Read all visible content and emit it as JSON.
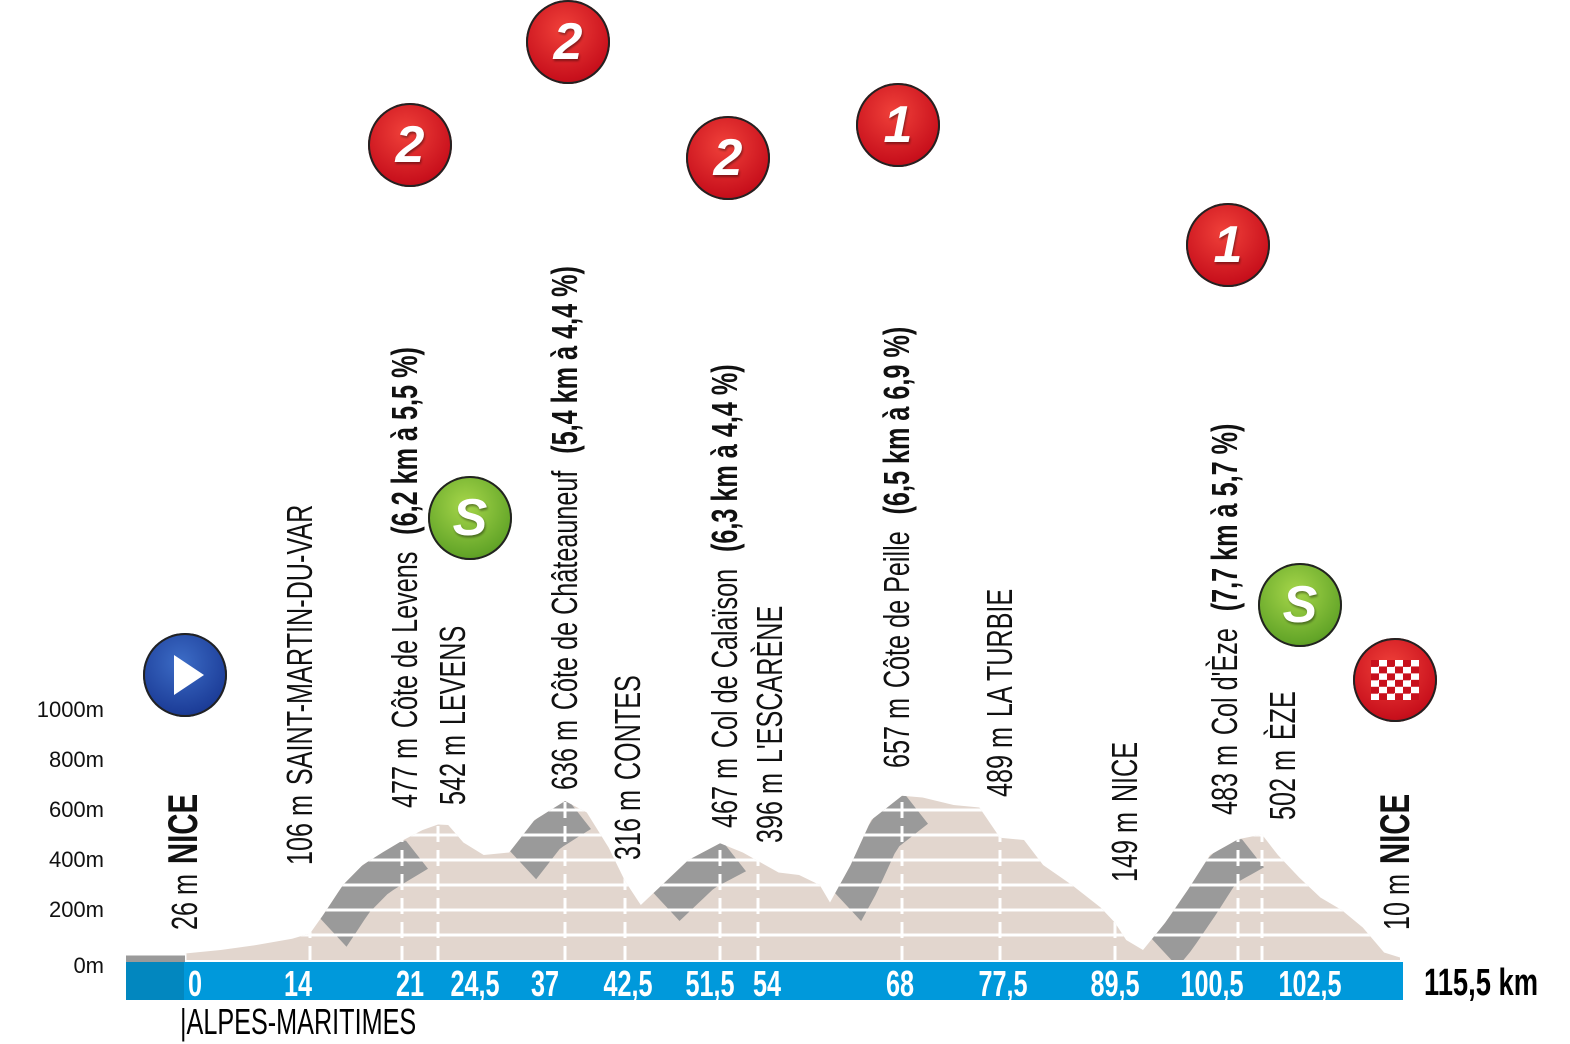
{
  "chart_data": {
    "type": "area",
    "title": "",
    "xlabel": "",
    "ylabel": "",
    "yticks": [
      "0m",
      "200m",
      "400m",
      "600m",
      "800m",
      "1000m"
    ],
    "ytick_values": [
      0,
      200,
      400,
      600,
      800,
      1000
    ],
    "ylim": [
      0,
      1000
    ],
    "xlim": [
      0,
      115.5
    ],
    "total_distance_label": "115,5 km",
    "department_label": "|ALPES-MARITIMES",
    "colors": {
      "terrain": "#e2d6ce",
      "climb": "#9a9a9a",
      "bar": "#0099db",
      "bar_dark": "#0287bf",
      "kom": "#c8101c",
      "sprint": "#63a528",
      "start": "#1d3e99"
    },
    "profile": [
      [
        0,
        26
      ],
      [
        4,
        40
      ],
      [
        8,
        60
      ],
      [
        12,
        85
      ],
      [
        14,
        106
      ],
      [
        15,
        180
      ],
      [
        16.5,
        300
      ],
      [
        18,
        380
      ],
      [
        19.5,
        430
      ],
      [
        21,
        477
      ],
      [
        23,
        520
      ],
      [
        24.5,
        542
      ],
      [
        25.5,
        540
      ],
      [
        27,
        470
      ],
      [
        29,
        420
      ],
      [
        31.5,
        430
      ],
      [
        34,
        560
      ],
      [
        37,
        636
      ],
      [
        39,
        590
      ],
      [
        41,
        450
      ],
      [
        42.5,
        316
      ],
      [
        44,
        220
      ],
      [
        46,
        300
      ],
      [
        48.5,
        400
      ],
      [
        51.5,
        467
      ],
      [
        53,
        430
      ],
      [
        54,
        396
      ],
      [
        56,
        350
      ],
      [
        58,
        340
      ],
      [
        60,
        300
      ],
      [
        61,
        230
      ],
      [
        63,
        380
      ],
      [
        65,
        560
      ],
      [
        68,
        657
      ],
      [
        70,
        650
      ],
      [
        73,
        620
      ],
      [
        75.5,
        610
      ],
      [
        77.5,
        489
      ],
      [
        80,
        480
      ],
      [
        82,
        380
      ],
      [
        85,
        300
      ],
      [
        88,
        210
      ],
      [
        89.5,
        149
      ],
      [
        90.5,
        80
      ],
      [
        92,
        40
      ],
      [
        94,
        150
      ],
      [
        96,
        280
      ],
      [
        98,
        420
      ],
      [
        100.5,
        483
      ],
      [
        102.5,
        502
      ],
      [
        104,
        420
      ],
      [
        106,
        330
      ],
      [
        108,
        250
      ],
      [
        110,
        200
      ],
      [
        112,
        130
      ],
      [
        114,
        30
      ],
      [
        115.5,
        10
      ]
    ],
    "climbs": [
      [
        14.8,
        21
      ],
      [
        31.6,
        37
      ],
      [
        45.2,
        51.5
      ],
      [
        61.5,
        68
      ],
      [
        92.8,
        100.5
      ]
    ],
    "km_ticks": [
      {
        "km": 0,
        "label": "0"
      },
      {
        "km": 14,
        "label": "14"
      },
      {
        "km": 21,
        "label": "21"
      },
      {
        "km": 24.5,
        "label": "24,5"
      },
      {
        "km": 37,
        "label": "37"
      },
      {
        "km": 42.5,
        "label": "42,5"
      },
      {
        "km": 51.5,
        "label": "51,5"
      },
      {
        "km": 54,
        "label": "54"
      },
      {
        "km": 68,
        "label": "68"
      },
      {
        "km": 77.5,
        "label": "77,5"
      },
      {
        "km": 89.5,
        "label": "89,5"
      },
      {
        "km": 100.5,
        "label": "100,5"
      },
      {
        "km": 102.5,
        "label": "102,5"
      }
    ],
    "points": [
      {
        "km": 0,
        "alt": "26 m",
        "name": "NICE",
        "bold": true,
        "marker": "start"
      },
      {
        "km": 14,
        "alt": "106 m",
        "name": "SAINT-MARTIN-DU-VAR"
      },
      {
        "km": 21,
        "alt": "477 m",
        "name": "Côte de Levens",
        "climb": "(6,2 km à 5,5 %)",
        "marker": "kom",
        "category": "2"
      },
      {
        "km": 24.5,
        "alt": "542 m",
        "name": "LEVENS",
        "marker": "sprint",
        "category": "S"
      },
      {
        "km": 37,
        "alt": "636 m",
        "name": "Côte de Châteauneuf",
        "climb": "(5,4 km à 4,4 %)",
        "marker": "kom",
        "category": "2"
      },
      {
        "km": 42.5,
        "alt": "316 m",
        "name": "CONTES"
      },
      {
        "km": 51.5,
        "alt": "467 m",
        "name": "Col de Calaïson",
        "climb": "(6,3 km à 4,4 %)",
        "marker": "kom",
        "category": "2"
      },
      {
        "km": 54,
        "alt": "396 m",
        "name": "L'ESCARÈNE"
      },
      {
        "km": 68,
        "alt": "657 m",
        "name": "Côte de Peille",
        "climb": "(6,5 km à 6,9 %)",
        "marker": "kom",
        "category": "1"
      },
      {
        "km": 77.5,
        "alt": "489 m",
        "name": "LA TURBIE"
      },
      {
        "km": 89.5,
        "alt": "149 m",
        "name": "NICE"
      },
      {
        "km": 100.5,
        "alt": "483 m",
        "name": "Col d'Èze",
        "climb": "(7,7 km à 5,7 %)",
        "marker": "kom",
        "category": "1"
      },
      {
        "km": 102.5,
        "alt": "502 m",
        "name": "ÈZE",
        "marker": "sprint",
        "category": "S"
      },
      {
        "km": 115.5,
        "alt": "10 m",
        "name": "NICE",
        "bold": true,
        "marker": "finish"
      }
    ]
  }
}
